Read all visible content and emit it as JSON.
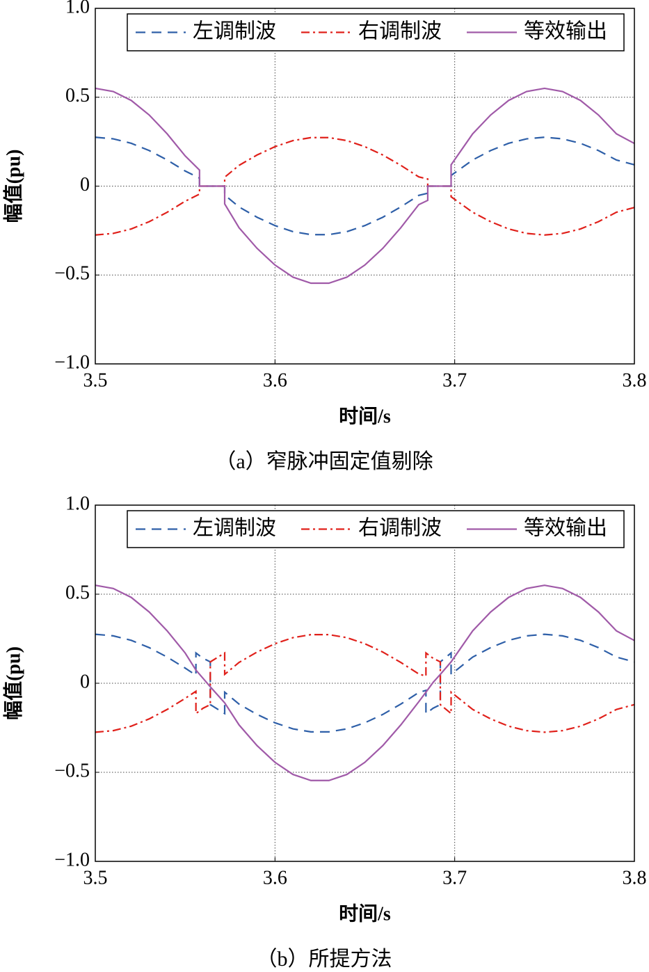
{
  "chart_data": [
    {
      "type": "line",
      "caption": "（a）窄脉冲固定值剔除",
      "xlabel": "时间/s",
      "ylabel": "幅值(pu)",
      "x": [
        3.5,
        3.51,
        3.52,
        3.53,
        3.54,
        3.55,
        3.558,
        3.558,
        3.572,
        3.572,
        3.58,
        3.59,
        3.6,
        3.61,
        3.62,
        3.63,
        3.64,
        3.65,
        3.66,
        3.67,
        3.68,
        3.685,
        3.685,
        3.698,
        3.698,
        3.71,
        3.72,
        3.73,
        3.74,
        3.75,
        3.76,
        3.77,
        3.78,
        3.79,
        3.8
      ],
      "series": [
        {
          "name": "左调制波",
          "color": "#2e5fa8",
          "linestyle": "dashed",
          "values": [
            0.275,
            0.266,
            0.241,
            0.2,
            0.147,
            0.085,
            0.045,
            0,
            0,
            -0.05,
            -0.117,
            -0.175,
            -0.222,
            -0.256,
            -0.273,
            -0.273,
            -0.256,
            -0.222,
            -0.175,
            -0.117,
            -0.052,
            -0.04,
            0,
            0,
            0.06,
            0.147,
            0.2,
            0.241,
            0.266,
            0.275,
            0.266,
            0.241,
            0.2,
            0.147,
            0.12
          ]
        },
        {
          "name": "右调制波",
          "color": "#e0201a",
          "linestyle": "dashdot",
          "values": [
            -0.275,
            -0.266,
            -0.241,
            -0.2,
            -0.147,
            -0.085,
            -0.045,
            0,
            0,
            0.05,
            0.117,
            0.175,
            0.222,
            0.256,
            0.273,
            0.273,
            0.256,
            0.222,
            0.175,
            0.117,
            0.052,
            0.04,
            0,
            0,
            -0.06,
            -0.147,
            -0.2,
            -0.241,
            -0.266,
            -0.275,
            -0.266,
            -0.241,
            -0.2,
            -0.147,
            -0.12
          ]
        },
        {
          "name": "等效输出",
          "color": "#a05aa8",
          "linestyle": "solid",
          "values": [
            0.55,
            0.532,
            0.482,
            0.4,
            0.294,
            0.17,
            0.09,
            0,
            0,
            -0.1,
            -0.234,
            -0.35,
            -0.444,
            -0.512,
            -0.546,
            -0.546,
            -0.512,
            -0.444,
            -0.35,
            -0.234,
            -0.104,
            -0.08,
            0,
            0,
            0.12,
            0.294,
            0.4,
            0.482,
            0.532,
            0.55,
            0.532,
            0.482,
            0.4,
            0.294,
            0.24
          ]
        }
      ],
      "xlim": [
        3.5,
        3.8
      ],
      "xticks": [
        3.5,
        3.6,
        3.7,
        3.8
      ],
      "ylim": [
        -1,
        1
      ],
      "yticks": [
        {
          "value": 1,
          "label": "1.0"
        },
        0.5,
        0,
        {
          "value": -0.5,
          "label": "−0.5"
        },
        {
          "value": -1,
          "label": "−1.0"
        }
      ],
      "grid": true,
      "legend": "upper right"
    },
    {
      "type": "line",
      "caption": "（b）所提方法",
      "xlabel": "时间/s",
      "ylabel": "幅值(pu)",
      "x": [
        3.5,
        3.51,
        3.52,
        3.53,
        3.54,
        3.55,
        3.556,
        3.556,
        3.56,
        3.564,
        3.564,
        3.572,
        3.572,
        3.58,
        3.59,
        3.6,
        3.61,
        3.62,
        3.63,
        3.64,
        3.65,
        3.66,
        3.67,
        3.68,
        3.684,
        3.684,
        3.688,
        3.692,
        3.692,
        3.698,
        3.698,
        3.71,
        3.72,
        3.73,
        3.74,
        3.75,
        3.76,
        3.77,
        3.78,
        3.79,
        3.8
      ],
      "series": [
        {
          "name": "左调制波",
          "color": "#2e5fa8",
          "linestyle": "dashed",
          "values": [
            0.275,
            0.266,
            0.241,
            0.2,
            0.147,
            0.085,
            0.045,
            0.17,
            0.14,
            0.12,
            -0.12,
            -0.17,
            -0.05,
            -0.117,
            -0.175,
            -0.222,
            -0.256,
            -0.273,
            -0.273,
            -0.256,
            -0.222,
            -0.175,
            -0.117,
            -0.052,
            -0.04,
            -0.17,
            -0.14,
            -0.12,
            0.12,
            0.17,
            0.05,
            0.147,
            0.2,
            0.241,
            0.266,
            0.275,
            0.266,
            0.241,
            0.2,
            0.147,
            0.12
          ]
        },
        {
          "name": "右调制波",
          "color": "#e0201a",
          "linestyle": "dashdot",
          "values": [
            -0.275,
            -0.266,
            -0.241,
            -0.2,
            -0.147,
            -0.085,
            -0.045,
            -0.17,
            -0.14,
            -0.12,
            0.12,
            0.17,
            0.05,
            0.117,
            0.175,
            0.222,
            0.256,
            0.273,
            0.273,
            0.256,
            0.222,
            0.175,
            0.117,
            0.052,
            0.04,
            0.17,
            0.14,
            0.12,
            -0.12,
            -0.17,
            -0.05,
            -0.147,
            -0.2,
            -0.241,
            -0.266,
            -0.275,
            -0.266,
            -0.241,
            -0.2,
            -0.147,
            -0.12
          ]
        },
        {
          "name": "等效输出",
          "color": "#a05aa8",
          "linestyle": "solid",
          "values": [
            0.55,
            0.532,
            0.482,
            0.4,
            0.294,
            0.17,
            0.074,
            0.074,
            0.027,
            -0.02,
            -0.02,
            -0.11,
            -0.11,
            -0.234,
            -0.35,
            -0.444,
            -0.512,
            -0.546,
            -0.546,
            -0.512,
            -0.444,
            -0.35,
            -0.234,
            -0.104,
            -0.05,
            -0.05,
            0.005,
            0.05,
            0.05,
            0.12,
            0.12,
            0.294,
            0.4,
            0.482,
            0.532,
            0.55,
            0.532,
            0.482,
            0.4,
            0.294,
            0.24
          ]
        }
      ],
      "xlim": [
        3.5,
        3.8
      ],
      "xticks": [
        3.5,
        3.6,
        3.7,
        3.8
      ],
      "ylim": [
        -1,
        1
      ],
      "yticks": [
        {
          "value": 1,
          "label": "1.0"
        },
        0.5,
        0,
        {
          "value": -0.5,
          "label": "−0.5"
        },
        {
          "value": -1,
          "label": "−1.0"
        }
      ],
      "grid": true,
      "legend": "upper right"
    }
  ]
}
